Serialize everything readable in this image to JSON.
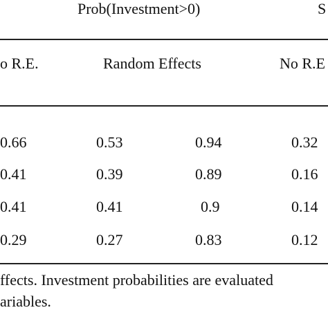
{
  "header": {
    "group_left": "Prob(Investment>0)",
    "group_right": "S",
    "col_no_re_left": "o R.E.",
    "col_random_effects": "Random Effects",
    "col_no_re_right": "No R.E"
  },
  "rows": [
    [
      "0.66",
      "0.53",
      "0.94",
      "0.32"
    ],
    [
      "0.41",
      "0.39",
      "0.89",
      "0.16"
    ],
    [
      "0.41",
      "0.41",
      "0.9",
      "0.14"
    ],
    [
      "0.29",
      "0.27",
      "0.83",
      "0.12"
    ]
  ],
  "footnote": {
    "line1": "ffects. Investment probabilities are evaluated",
    "line2": "ariables."
  }
}
